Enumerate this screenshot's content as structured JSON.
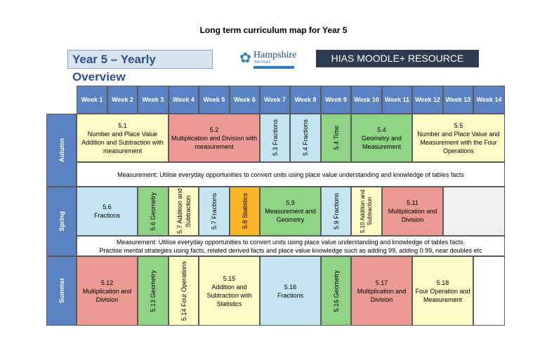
{
  "title": "Long term curriculum map for Year 5",
  "header": {
    "overview": "Year 5 – Yearly Overview",
    "logo_name": "Hampshire",
    "logo_sub": "Services",
    "banner": "HIAS MOODLE+ RESOURCE"
  },
  "weeks": [
    "Week 1",
    "Week 2",
    "Week 3",
    "Week 4",
    "Week 5",
    "Week 6",
    "Week 7",
    "Week 8",
    "Week 9",
    "Week 10",
    "Week 11",
    "Week 12",
    "Week 13",
    "Week 14"
  ],
  "terms": [
    "Autumn",
    "Spring",
    "Summer"
  ],
  "autumn": {
    "u1_num": "5.1",
    "u1_title": "Number and Place Value Addition and Subtraction with measurement",
    "u2_num": "5.2",
    "u2_title": "Multiplication and Division with measurement",
    "u3": "5.3 Fractions",
    "u4": "5.4 Fractions",
    "u5": "5.4 Time",
    "u6_num": "5.4",
    "u6_title": "Geometry and Measurement",
    "u7_num": "5.5",
    "u7_title": "Number and Place Value and Measurement with the Four Operations",
    "note": "Measurement: Utilise everyday opportunities to convert units using place value understanding and knowledge of tables facts"
  },
  "spring": {
    "u1_num": "5.6",
    "u1_title": "Fractions",
    "u2": "5.6 Geometry",
    "u3": "5.7 Addition and Subtraction",
    "u4": "5.7 Fractions",
    "u5": "5.8 Statistics",
    "u6_num": "5.9",
    "u6_title": "Measurement and Geometry",
    "u7": "5.9 Fractions",
    "u8": "5.10 Addition and Subtraction",
    "u9_num": "5.11",
    "u9_title": "Multiplication and Division",
    "note1": "Measurement: Utilise everyday opportunities to convert units using place value understanding and knowledge of tables facts.",
    "note2": "Practise mental strategies using facts, related derived facts and place value knowledge such as adding 99, adding 0.99, near doubles etc"
  },
  "summer": {
    "u1_num": "5.12",
    "u1_title": "Multiplication and Division",
    "u2": "5.13 Geometry",
    "u3": "5.14 Four Operations",
    "u4_num": "5.15",
    "u4_title": "Addition and Subtraction with Statistics",
    "u5_num": "5.16",
    "u5_title": "Fractions",
    "u6": "5.16 Geometry",
    "u7_num": "5.17",
    "u7_title": "Multiplication and Division",
    "u8_num": "5.18",
    "u8_title": "Four Operation and Measurement"
  }
}
